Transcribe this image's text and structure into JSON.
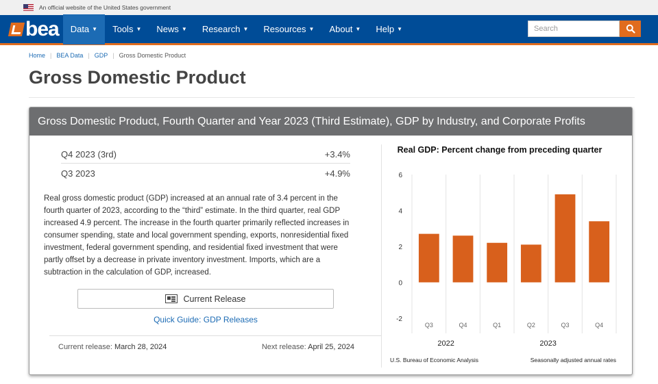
{
  "gov_banner": {
    "text": "An official website of the United States government"
  },
  "nav": {
    "logo_text": "bea",
    "items": [
      {
        "label": "Data",
        "active": true
      },
      {
        "label": "Tools"
      },
      {
        "label": "News"
      },
      {
        "label": "Research"
      },
      {
        "label": "Resources"
      },
      {
        "label": "About"
      },
      {
        "label": "Help"
      }
    ],
    "search_placeholder": "Search"
  },
  "breadcrumb": [
    "Home",
    "BEA Data",
    "GDP",
    "Gross Domestic Product"
  ],
  "page_title": "Gross Domestic Product",
  "card": {
    "header": "Gross Domestic Product, Fourth Quarter and Year 2023 (Third Estimate), GDP by Industry, and Corporate Profits",
    "stats": [
      {
        "label": "Q4 2023 (3rd)",
        "value": "+3.4%"
      },
      {
        "label": "Q3 2023",
        "value": "+4.9%"
      }
    ],
    "summary": "Real gross domestic product (GDP) increased at an annual rate of 3.4 percent in the fourth quarter of 2023, according to the “third” estimate. In the third quarter, real GDP increased 4.9 percent. The increase in the fourth quarter primarily reflected increases in consumer spending, state and local government spending, exports, nonresidential fixed investment, federal government spending, and residential fixed investment that were partly offset by a decrease in private inventory investment. Imports, which are a subtraction in the calculation of GDP, increased.",
    "current_release_label": "Current Release",
    "quick_guide_label": "Quick Guide: GDP Releases",
    "current_release": {
      "label": "Current release:",
      "date": "March 28, 2024"
    },
    "next_release": {
      "label": "Next release:",
      "date": "April 25, 2024"
    }
  },
  "colors": {
    "nav_bg": "#004c97",
    "accent": "#e06c1e",
    "bar": "#d8601c",
    "link": "#1c6bb4",
    "card_header": "#6d6e70"
  },
  "chart_data": {
    "type": "bar",
    "title": "Real GDP:  Percent change from preceding quarter",
    "categories": [
      "Q3",
      "Q4",
      "Q1",
      "Q2",
      "Q3",
      "Q4"
    ],
    "year_groups": [
      {
        "label": "2022",
        "categories": [
          "Q3",
          "Q4"
        ]
      },
      {
        "label": "2023",
        "categories": [
          "Q1",
          "Q2",
          "Q3",
          "Q4"
        ]
      }
    ],
    "values": [
      2.7,
      2.6,
      2.2,
      2.1,
      4.9,
      3.4
    ],
    "ylim": [
      -2,
      6
    ],
    "yticks": [
      6,
      4,
      2,
      0,
      -2
    ],
    "grid": "vertical",
    "source_note": "U.S. Bureau of Economic Analysis",
    "note": "Seasonally adjusted annual rates"
  }
}
